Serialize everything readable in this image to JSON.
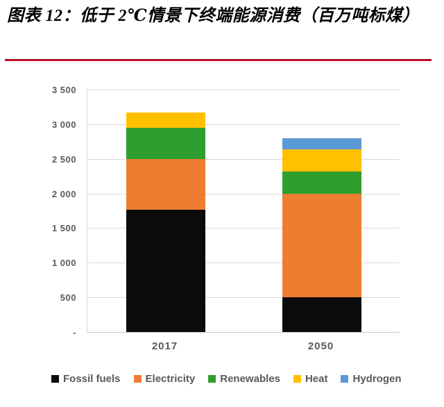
{
  "figure": {
    "title": "图表 12：低于 2℃情景下终端能源消费（百万吨标煤）"
  },
  "chart_data": {
    "type": "bar",
    "stacked": true,
    "title": "低于 2℃情景下终端能源消费（百万吨标煤）",
    "categories": [
      "2017",
      "2050"
    ],
    "series": [
      {
        "name": "Fossil fuels",
        "color": "#0b0b0b",
        "values": [
          1770,
          500
        ]
      },
      {
        "name": "Electricity",
        "color": "#ed7d31",
        "values": [
          730,
          1500
        ]
      },
      {
        "name": "Renewables",
        "color": "#2e9f2e",
        "values": [
          450,
          320
        ]
      },
      {
        "name": "Heat",
        "color": "#ffc000",
        "values": [
          220,
          320
        ]
      },
      {
        "name": "Hydrogen",
        "color": "#5b9bd5",
        "values": [
          0,
          160
        ]
      }
    ],
    "ylim": [
      0,
      3500
    ],
    "ytick_interval": 500,
    "yticks": [
      {
        "value": 3500,
        "label": "3 500"
      },
      {
        "value": 3000,
        "label": "3 000"
      },
      {
        "value": 2500,
        "label": "2 500"
      },
      {
        "value": 2000,
        "label": "2 000"
      },
      {
        "value": 1500,
        "label": "1 500"
      },
      {
        "value": 1000,
        "label": "1 000"
      },
      {
        "value": 500,
        "label": "500"
      },
      {
        "value": 0,
        "label": "-"
      }
    ],
    "grid": true,
    "legend_position": "bottom",
    "xlabel": "",
    "ylabel": ""
  },
  "styles": {
    "rule_color": "#d50f2c",
    "grid_color": "#d9d9d9",
    "axis_text_color": "#595959"
  }
}
